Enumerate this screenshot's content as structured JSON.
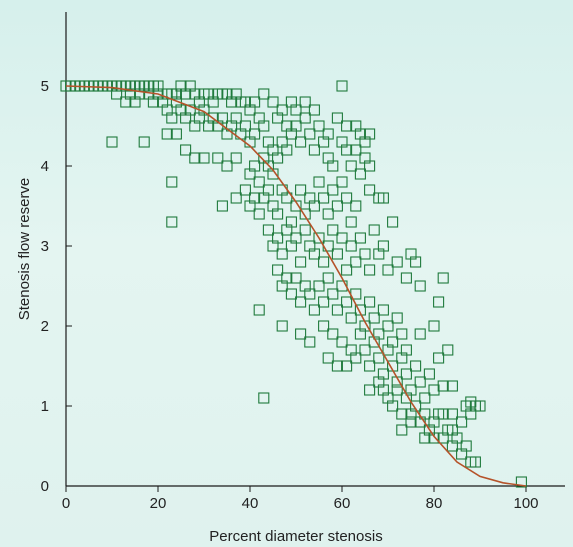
{
  "chart_data": {
    "type": "scatter",
    "title": "",
    "xlabel": "Percent diameter stenosis",
    "ylabel": "Stenosis flow reserve",
    "xlim": [
      0,
      100
    ],
    "ylim": [
      0,
      5
    ],
    "xticks": [
      "0",
      "20",
      "40",
      "60",
      "80",
      "100"
    ],
    "yticks": [
      "0",
      "1",
      "2",
      "3",
      "4",
      "5"
    ],
    "grid": false,
    "legend": "none",
    "colors": {
      "markers": "#1f7a3c",
      "curve": "#b5532a",
      "axes": "#1a1a1a"
    },
    "series": [
      {
        "kind": "points",
        "points": [
          [
            0,
            5.0
          ],
          [
            1,
            5.0
          ],
          [
            2,
            5.0
          ],
          [
            3,
            5.0
          ],
          [
            4,
            5.0
          ],
          [
            5,
            5.0
          ],
          [
            6,
            5.0
          ],
          [
            7,
            5.0
          ],
          [
            8,
            5.0
          ],
          [
            9,
            5.0
          ],
          [
            10,
            5.0
          ],
          [
            11,
            5.0
          ],
          [
            12,
            5.0
          ],
          [
            13,
            5.0
          ],
          [
            14,
            5.0
          ],
          [
            15,
            5.0
          ],
          [
            16,
            5.0
          ],
          [
            17,
            5.0
          ],
          [
            18,
            5.0
          ],
          [
            19,
            5.0
          ],
          [
            20,
            5.0
          ],
          [
            11,
            4.9
          ],
          [
            13,
            4.8
          ],
          [
            15,
            4.8
          ],
          [
            14,
            4.9
          ],
          [
            16,
            4.9
          ],
          [
            18,
            4.9
          ],
          [
            19,
            4.8
          ],
          [
            20,
            4.9
          ],
          [
            21,
            4.8
          ],
          [
            22,
            4.9
          ],
          [
            23,
            4.9
          ],
          [
            24,
            4.9
          ],
          [
            25,
            5.0
          ],
          [
            26,
            4.9
          ],
          [
            27,
            5.0
          ],
          [
            28,
            4.9
          ],
          [
            29,
            4.8
          ],
          [
            30,
            4.9
          ],
          [
            31,
            4.9
          ],
          [
            32,
            4.8
          ],
          [
            33,
            4.9
          ],
          [
            34,
            4.9
          ],
          [
            35,
            4.9
          ],
          [
            36,
            4.8
          ],
          [
            37,
            4.9
          ],
          [
            38,
            4.8
          ],
          [
            39,
            4.8
          ],
          [
            40,
            4.7
          ],
          [
            22,
            4.7
          ],
          [
            23,
            4.6
          ],
          [
            24,
            4.8
          ],
          [
            25,
            4.7
          ],
          [
            26,
            4.6
          ],
          [
            27,
            4.7
          ],
          [
            28,
            4.5
          ],
          [
            29,
            4.6
          ],
          [
            30,
            4.7
          ],
          [
            31,
            4.5
          ],
          [
            32,
            4.6
          ],
          [
            33,
            4.5
          ],
          [
            34,
            4.6
          ],
          [
            35,
            4.4
          ],
          [
            36,
            4.5
          ],
          [
            37,
            4.6
          ],
          [
            38,
            4.4
          ],
          [
            39,
            4.5
          ],
          [
            40,
            4.3
          ],
          [
            41,
            4.4
          ],
          [
            42,
            4.6
          ],
          [
            43,
            4.5
          ],
          [
            44,
            4.3
          ],
          [
            45,
            4.2
          ],
          [
            10,
            4.3
          ],
          [
            17,
            4.3
          ],
          [
            22,
            4.4
          ],
          [
            24,
            4.4
          ],
          [
            26,
            4.2
          ],
          [
            28,
            4.1
          ],
          [
            30,
            4.1
          ],
          [
            33,
            4.1
          ],
          [
            35,
            4.0
          ],
          [
            37,
            4.1
          ],
          [
            40,
            3.9
          ],
          [
            41,
            4.0
          ],
          [
            42,
            3.8
          ],
          [
            43,
            4.1
          ],
          [
            44,
            4.0
          ],
          [
            45,
            3.9
          ],
          [
            46,
            4.1
          ],
          [
            47,
            4.3
          ],
          [
            48,
            4.2
          ],
          [
            49,
            4.4
          ],
          [
            50,
            4.5
          ],
          [
            51,
            4.3
          ],
          [
            52,
            4.6
          ],
          [
            53,
            4.4
          ],
          [
            54,
            4.2
          ],
          [
            55,
            4.5
          ],
          [
            56,
            4.3
          ],
          [
            57,
            4.1
          ],
          [
            58,
            4.0
          ],
          [
            60,
            4.3
          ],
          [
            61,
            4.2
          ],
          [
            62,
            4.0
          ],
          [
            63,
            4.2
          ],
          [
            64,
            3.9
          ],
          [
            65,
            4.3
          ],
          [
            66,
            4.0
          ],
          [
            60,
            5.0
          ],
          [
            59,
            4.6
          ],
          [
            57,
            4.4
          ],
          [
            46,
            4.6
          ],
          [
            48,
            4.5
          ],
          [
            50,
            4.7
          ],
          [
            52,
            4.8
          ],
          [
            54,
            4.7
          ],
          [
            61,
            4.5
          ],
          [
            64,
            4.4
          ],
          [
            65,
            4.1
          ],
          [
            63,
            4.5
          ],
          [
            66,
            4.4
          ],
          [
            41,
            4.8
          ],
          [
            43,
            4.9
          ],
          [
            45,
            4.8
          ],
          [
            47,
            4.7
          ],
          [
            49,
            4.8
          ],
          [
            23,
            3.8
          ],
          [
            23,
            3.3
          ],
          [
            34,
            3.5
          ],
          [
            37,
            3.6
          ],
          [
            39,
            3.7
          ],
          [
            40,
            3.5
          ],
          [
            41,
            3.6
          ],
          [
            42,
            3.4
          ],
          [
            43,
            3.6
          ],
          [
            44,
            3.7
          ],
          [
            45,
            3.5
          ],
          [
            46,
            3.4
          ],
          [
            47,
            3.7
          ],
          [
            48,
            3.6
          ],
          [
            49,
            3.3
          ],
          [
            50,
            3.5
          ],
          [
            51,
            3.7
          ],
          [
            52,
            3.4
          ],
          [
            53,
            3.6
          ],
          [
            54,
            3.5
          ],
          [
            55,
            3.8
          ],
          [
            56,
            3.6
          ],
          [
            57,
            3.4
          ],
          [
            58,
            3.7
          ],
          [
            59,
            3.5
          ],
          [
            60,
            3.8
          ],
          [
            61,
            3.6
          ],
          [
            62,
            3.3
          ],
          [
            63,
            3.5
          ],
          [
            66,
            3.7
          ],
          [
            68,
            3.6
          ],
          [
            69,
            3.6
          ],
          [
            71,
            3.3
          ],
          [
            44,
            3.2
          ],
          [
            45,
            3.0
          ],
          [
            46,
            3.1
          ],
          [
            47,
            2.9
          ],
          [
            48,
            3.2
          ],
          [
            49,
            3.0
          ],
          [
            50,
            3.1
          ],
          [
            51,
            2.8
          ],
          [
            52,
            3.2
          ],
          [
            53,
            3.0
          ],
          [
            54,
            2.9
          ],
          [
            55,
            3.1
          ],
          [
            56,
            2.8
          ],
          [
            57,
            3.0
          ],
          [
            58,
            3.2
          ],
          [
            59,
            2.9
          ],
          [
            60,
            3.1
          ],
          [
            61,
            2.7
          ],
          [
            62,
            3.0
          ],
          [
            63,
            2.8
          ],
          [
            64,
            3.1
          ],
          [
            65,
            2.9
          ],
          [
            66,
            2.7
          ],
          [
            67,
            3.2
          ],
          [
            68,
            2.9
          ],
          [
            69,
            3.0
          ],
          [
            70,
            2.7
          ],
          [
            72,
            2.8
          ],
          [
            74,
            2.6
          ],
          [
            75,
            2.9
          ],
          [
            76,
            2.8
          ],
          [
            77,
            2.5
          ],
          [
            46,
            2.7
          ],
          [
            47,
            2.5
          ],
          [
            48,
            2.6
          ],
          [
            49,
            2.4
          ],
          [
            50,
            2.6
          ],
          [
            51,
            2.3
          ],
          [
            52,
            2.5
          ],
          [
            53,
            2.4
          ],
          [
            54,
            2.2
          ],
          [
            55,
            2.5
          ],
          [
            56,
            2.3
          ],
          [
            57,
            2.6
          ],
          [
            58,
            2.4
          ],
          [
            59,
            2.2
          ],
          [
            60,
            2.5
          ],
          [
            61,
            2.3
          ],
          [
            62,
            2.1
          ],
          [
            63,
            2.4
          ],
          [
            64,
            2.2
          ],
          [
            65,
            2.0
          ],
          [
            66,
            2.3
          ],
          [
            67,
            2.1
          ],
          [
            68,
            1.9
          ],
          [
            69,
            2.2
          ],
          [
            70,
            2.0
          ],
          [
            71,
            1.8
          ],
          [
            72,
            2.1
          ],
          [
            73,
            1.9
          ],
          [
            74,
            1.7
          ],
          [
            77,
            1.9
          ],
          [
            80,
            2.0
          ],
          [
            81,
            2.3
          ],
          [
            82,
            2.6
          ],
          [
            42,
            2.2
          ],
          [
            47,
            2.0
          ],
          [
            51,
            1.9
          ],
          [
            53,
            1.8
          ],
          [
            56,
            2.0
          ],
          [
            58,
            1.9
          ],
          [
            60,
            1.8
          ],
          [
            62,
            1.7
          ],
          [
            63,
            1.6
          ],
          [
            64,
            1.9
          ],
          [
            65,
            1.7
          ],
          [
            66,
            1.5
          ],
          [
            67,
            1.8
          ],
          [
            68,
            1.6
          ],
          [
            69,
            1.4
          ],
          [
            70,
            1.7
          ],
          [
            71,
            1.5
          ],
          [
            72,
            1.3
          ],
          [
            73,
            1.6
          ],
          [
            74,
            1.4
          ],
          [
            75,
            1.2
          ],
          [
            76,
            1.5
          ],
          [
            77,
            1.3
          ],
          [
            78,
            1.1
          ],
          [
            79,
            1.4
          ],
          [
            80,
            1.2
          ],
          [
            81,
            1.6
          ],
          [
            83,
            1.7
          ],
          [
            82,
            1.25
          ],
          [
            84,
            1.25
          ],
          [
            57,
            1.6
          ],
          [
            59,
            1.5
          ],
          [
            61,
            1.5
          ],
          [
            66,
            1.2
          ],
          [
            68,
            1.3
          ],
          [
            70,
            1.1
          ],
          [
            71,
            1.0
          ],
          [
            72,
            1.2
          ],
          [
            73,
            0.9
          ],
          [
            74,
            1.1
          ],
          [
            75,
            0.9
          ],
          [
            76,
            1.0
          ],
          [
            77,
            0.8
          ],
          [
            78,
            0.9
          ],
          [
            79,
            0.7
          ],
          [
            80,
            0.8
          ],
          [
            81,
            0.9
          ],
          [
            82,
            0.6
          ],
          [
            83,
            0.7
          ],
          [
            84,
            0.5
          ],
          [
            85,
            0.6
          ],
          [
            86,
            0.4
          ],
          [
            87,
            0.5
          ],
          [
            88,
            0.3
          ],
          [
            89,
            0.3
          ],
          [
            43,
            1.1
          ],
          [
            69,
            1.2
          ],
          [
            73,
            0.7
          ],
          [
            75,
            0.8
          ],
          [
            78,
            0.6
          ],
          [
            80,
            0.6
          ],
          [
            82,
            0.9
          ],
          [
            84,
            0.9
          ],
          [
            86,
            0.8
          ],
          [
            87,
            1.0
          ],
          [
            88,
            0.9
          ],
          [
            89,
            1.0
          ],
          [
            88,
            1.05
          ],
          [
            90,
            1.0
          ],
          [
            84,
            0.7
          ],
          [
            99,
            0.05
          ]
        ]
      },
      {
        "kind": "fit-curve",
        "points": [
          [
            0,
            5.0
          ],
          [
            10,
            4.98
          ],
          [
            20,
            4.9
          ],
          [
            30,
            4.68
          ],
          [
            40,
            4.25
          ],
          [
            45,
            3.95
          ],
          [
            50,
            3.55
          ],
          [
            55,
            3.1
          ],
          [
            60,
            2.6
          ],
          [
            65,
            2.05
          ],
          [
            70,
            1.55
          ],
          [
            75,
            1.05
          ],
          [
            80,
            0.62
          ],
          [
            85,
            0.3
          ],
          [
            90,
            0.12
          ],
          [
            95,
            0.04
          ],
          [
            100,
            0.0
          ]
        ]
      }
    ]
  }
}
